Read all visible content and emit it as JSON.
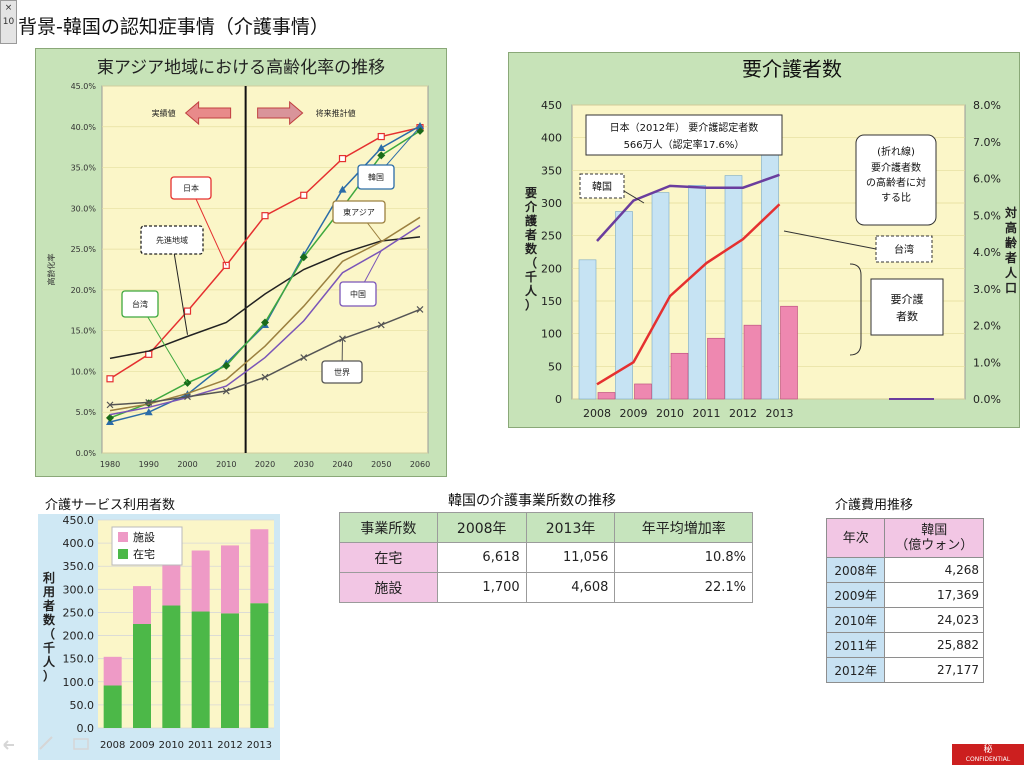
{
  "slide": {
    "title": "背景-韓国の認知症事情（介護事情）",
    "close_label": "×",
    "page_number": "10"
  },
  "chart_data": [
    {
      "id": "aging",
      "type": "line",
      "title": "東アジア地域における高齢化率の推移",
      "ylabel": "高齢化率",
      "x": [
        1980,
        1990,
        2000,
        2010,
        2020,
        2030,
        2040,
        2050,
        2060
      ],
      "ylim": [
        0,
        45
      ],
      "yticks": [
        "0.0%",
        "5.0%",
        "10.0%",
        "15.0%",
        "20.0%",
        "25.0%",
        "30.0%",
        "35.0%",
        "40.0%",
        "45.0%"
      ],
      "divider_x": 2015,
      "arrow_left_label": "実績値",
      "arrow_right_label": "将来推計値",
      "series": [
        {
          "key": "japan",
          "name": "日本",
          "color": "#e53030",
          "marker": "square",
          "values": [
            9.1,
            12.1,
            17.4,
            23.0,
            29.1,
            31.6,
            36.1,
            38.8,
            39.9
          ]
        },
        {
          "key": "developed",
          "name": "先進地域",
          "color": "#222222",
          "marker": "none",
          "values": [
            11.6,
            12.5,
            14.3,
            16.0,
            19.5,
            22.5,
            24.5,
            26.0,
            26.5
          ]
        },
        {
          "key": "korea",
          "name": "韓国",
          "color": "#2b6ca8",
          "marker": "triangle",
          "values": [
            3.8,
            5.0,
            7.2,
            11.0,
            15.7,
            24.3,
            32.3,
            37.4,
            40.1
          ]
        },
        {
          "key": "taiwan",
          "name": "台湾",
          "color": "#3ea83e",
          "marker": "diamond",
          "values": [
            4.3,
            6.1,
            8.6,
            10.7,
            16.0,
            24.0,
            30.1,
            36.5,
            39.5
          ]
        },
        {
          "key": "china",
          "name": "中国",
          "color": "#7a55b8",
          "marker": "none",
          "values": [
            4.7,
            5.6,
            6.8,
            8.2,
            11.7,
            16.2,
            22.1,
            24.8,
            27.9
          ]
        },
        {
          "key": "eastasia",
          "name": "東アジア",
          "color": "#9b8040",
          "marker": "none",
          "values": [
            5.2,
            6.0,
            7.3,
            9.0,
            13.1,
            18.0,
            23.5,
            25.9,
            28.9
          ]
        },
        {
          "key": "world",
          "name": "世界",
          "color": "#555555",
          "marker": "x",
          "values": [
            5.9,
            6.2,
            6.9,
            7.6,
            9.3,
            11.7,
            14.0,
            15.7,
            17.6
          ]
        }
      ]
    },
    {
      "id": "care_need",
      "type": "bar",
      "title": "要介護者数",
      "ylabel": "要介護者数（千人）",
      "y2label": "対高齢者人口",
      "categories": [
        "2008",
        "2009",
        "2010",
        "2011",
        "2012",
        "2013"
      ],
      "ylim": [
        0,
        450
      ],
      "yticks": [
        "0",
        "50",
        "100",
        "150",
        "200",
        "250",
        "300",
        "350",
        "400",
        "450"
      ],
      "y2lim": [
        0,
        8
      ],
      "y2ticks": [
        "0.0%",
        "1.0%",
        "2.0%",
        "3.0%",
        "4.0%",
        "5.0%",
        "6.0%",
        "7.0%",
        "8.0%"
      ],
      "series": [
        {
          "key": "taiwan_bars",
          "name": "台湾",
          "color": "#c6e3f3",
          "values": [
            213,
            287,
            316,
            327,
            342,
            378
          ]
        },
        {
          "key": "korea_bars",
          "name": "要介護者数",
          "color": "#ee88b0",
          "values": [
            10,
            23,
            70,
            93,
            113,
            142
          ]
        },
        {
          "key": "korea_ratio",
          "name": "韓国",
          "color": "#6a3d9e",
          "axis": "y2",
          "values": [
            4.3,
            5.4,
            5.8,
            5.75,
            5.75,
            6.1
          ]
        },
        {
          "key": "taiwan_ratio",
          "name": "台湾",
          "color": "#e53030",
          "axis": "y2",
          "values": [
            0.4,
            1.0,
            2.8,
            3.7,
            4.35,
            5.3
          ]
        }
      ],
      "note_japan": "日本（2012年） 要介護認定者数",
      "note_japan_2": "566万人（認定率17.6%）",
      "callout_line": "(折れ線)",
      "callout_desc": "要介護者数の高齢者に対する比",
      "label_korea": "韓国",
      "label_taiwan": "台湾",
      "label_bars": "要介護者数"
    },
    {
      "id": "service_users",
      "type": "bar",
      "title": "介護サービス利用者数",
      "ylabel": "利用者数（千人）",
      "categories": [
        "2008",
        "2009",
        "2010",
        "2011",
        "2012",
        "2013"
      ],
      "ylim": [
        0,
        450
      ],
      "yticks": [
        "0.0",
        "50.0",
        "100.0",
        "150.0",
        "200.0",
        "250.0",
        "300.0",
        "350.0",
        "400.0",
        "450.0"
      ],
      "series": [
        {
          "key": "home",
          "name": "在宅",
          "color": "#4cb848",
          "values": [
            92,
            225,
            265,
            252,
            248,
            270
          ]
        },
        {
          "key": "facility",
          "name": "施設",
          "color": "#ee9ac6",
          "values": [
            62,
            82,
            115,
            132,
            147,
            160
          ]
        }
      ]
    }
  ],
  "facilities_table": {
    "title": "韓国の介護事業所数の推移",
    "headers": [
      "事業所数",
      "2008年",
      "2013年",
      "年平均増加率"
    ],
    "rows": [
      [
        "在宅",
        "6,618",
        "11,056",
        "10.8%"
      ],
      [
        "施設",
        "1,700",
        "4,608",
        "22.1%"
      ]
    ]
  },
  "cost_table": {
    "title": "介護費用推移",
    "header_year": "年次",
    "header_korea": "韓国",
    "header_unit": "（億ウォン）",
    "rows": [
      [
        "2008年",
        "4,268"
      ],
      [
        "2009年",
        "17,369"
      ],
      [
        "2010年",
        "24,023"
      ],
      [
        "2011年",
        "25,882"
      ],
      [
        "2012年",
        "27,177"
      ]
    ]
  },
  "stamp": {
    "label": "秘",
    "sub": "CONFIDENTIAL"
  },
  "colors": {
    "panel_green": "#c7e3b8",
    "plot_yellow": "#fbf6c8",
    "service_bg": "#cfe8f4",
    "service_plot": "#fbf6c8"
  }
}
